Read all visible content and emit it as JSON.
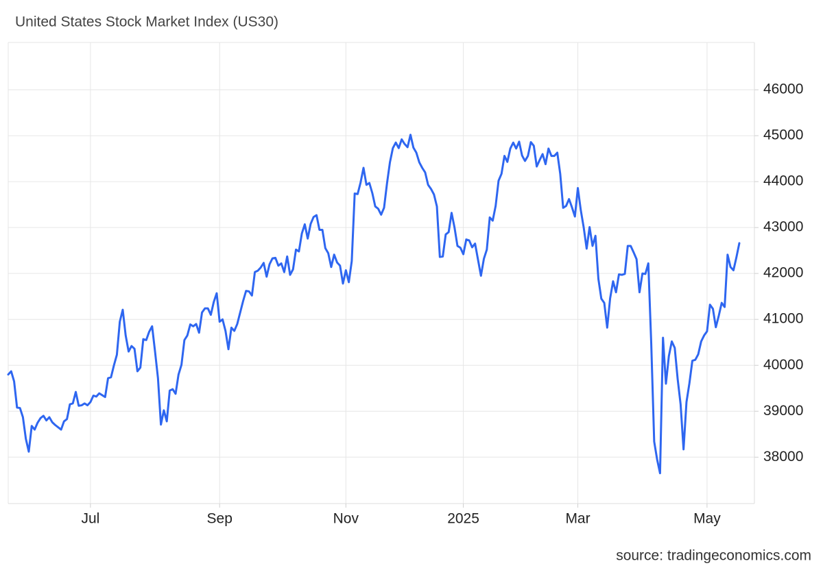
{
  "chart_data": {
    "type": "line",
    "title": "United States Stock Market Index (US30)",
    "source": "source: tradingeconomics.com",
    "color": "#2e66f0",
    "grid": true,
    "categories": [
      null,
      null,
      null,
      null,
      null,
      null,
      null,
      null,
      null,
      null,
      null,
      null,
      null,
      null,
      null,
      null,
      null,
      null,
      null,
      null,
      null,
      null,
      null,
      null,
      null,
      null,
      null,
      null,
      "Jul",
      null,
      null,
      null,
      null,
      null,
      null,
      null,
      null,
      null,
      null,
      null,
      null,
      null,
      null,
      null,
      null,
      null,
      null,
      null,
      null,
      null,
      null,
      null,
      null,
      null,
      null,
      null,
      null,
      null,
      null,
      null,
      null,
      null,
      null,
      null,
      null,
      null,
      null,
      null,
      null,
      null,
      null,
      null,
      "Sep",
      null,
      null,
      null,
      null,
      null,
      null,
      null,
      null,
      null,
      null,
      null,
      null,
      null,
      null,
      null,
      null,
      null,
      null,
      null,
      null,
      null,
      null,
      null,
      null,
      null,
      null,
      null,
      null,
      null,
      null,
      null,
      null,
      null,
      null,
      null,
      null,
      null,
      null,
      null,
      null,
      null,
      null,
      "Nov",
      null,
      null,
      null,
      null,
      null,
      null,
      null,
      null,
      null,
      null,
      null,
      null,
      null,
      null,
      null,
      null,
      null,
      null,
      null,
      null,
      null,
      null,
      null,
      null,
      null,
      null,
      null,
      null,
      null,
      null,
      null,
      null,
      null,
      null,
      null,
      null,
      null,
      null,
      null,
      "2025",
      null,
      null,
      null,
      null,
      null,
      null,
      null,
      null,
      null,
      null,
      null,
      null,
      null,
      null,
      null,
      null,
      null,
      null,
      null,
      null,
      null,
      null,
      null,
      null,
      null,
      null,
      null,
      null,
      null,
      null,
      null,
      null,
      null,
      null,
      null,
      null,
      null,
      null,
      "Mar",
      null,
      null,
      null,
      null,
      null,
      null,
      null,
      null,
      null,
      null,
      null,
      null,
      null,
      null,
      null,
      null,
      null,
      null,
      null,
      null,
      null,
      null,
      null,
      null,
      null,
      null,
      null,
      null,
      null,
      null,
      null,
      null,
      null,
      null,
      null,
      null,
      null,
      null,
      null,
      null,
      null,
      null,
      null,
      "May",
      null,
      null,
      null,
      null,
      null,
      null,
      null,
      null,
      null,
      null,
      null
    ],
    "values": [
      39800,
      39870,
      39650,
      39080,
      39070,
      38870,
      38400,
      38120,
      38680,
      38600,
      38750,
      38850,
      38900,
      38800,
      38870,
      38760,
      38700,
      38650,
      38600,
      38780,
      38830,
      39150,
      39170,
      39420,
      39120,
      39130,
      39170,
      39130,
      39200,
      39340,
      39320,
      39390,
      39350,
      39310,
      39720,
      39740,
      40000,
      40230,
      40950,
      41210,
      40650,
      40300,
      40420,
      40360,
      39870,
      39950,
      40570,
      40550,
      40730,
      40850,
      40300,
      39720,
      38710,
      39020,
      38780,
      39450,
      39480,
      39380,
      39800,
      40010,
      40550,
      40650,
      40890,
      40850,
      40900,
      40710,
      41150,
      41240,
      41240,
      41100,
      41380,
      41570,
      40950,
      41000,
      40750,
      40350,
      40820,
      40750,
      40900,
      41150,
      41400,
      41620,
      41610,
      41520,
      42030,
      42060,
      42130,
      42230,
      41930,
      42200,
      42330,
      42340,
      42170,
      42220,
      42030,
      42370,
      41970,
      42090,
      42520,
      42480,
      42870,
      43070,
      42760,
      43080,
      43230,
      43270,
      42950,
      42950,
      42550,
      42440,
      42140,
      42410,
      42240,
      42170,
      41780,
      42070,
      41810,
      42270,
      43740,
      43730,
      43980,
      44300,
      43930,
      43970,
      43750,
      43460,
      43410,
      43280,
      43430,
      43960,
      44420,
      44730,
      44850,
      44730,
      44920,
      44820,
      44750,
      45020,
      44740,
      44630,
      44420,
      44300,
      44200,
      43930,
      43840,
      43720,
      43460,
      42360,
      42370,
      42850,
      42900,
      43320,
      43000,
      42600,
      42560,
      42420,
      42740,
      42720,
      42570,
      42650,
      42300,
      41950,
      42320,
      42520,
      43220,
      43150,
      43470,
      44020,
      44170,
      44560,
      44430,
      44720,
      44850,
      44720,
      44870,
      44570,
      44450,
      44560,
      44860,
      44780,
      44330,
      44470,
      44600,
      44380,
      44720,
      44560,
      44560,
      44630,
      44170,
      43430,
      43470,
      43620,
      43440,
      43240,
      43860,
      43380,
      43000,
      42540,
      43010,
      42600,
      42820,
      41880,
      41450,
      41360,
      40820,
      41460,
      41830,
      41590,
      41980,
      41970,
      41990,
      42600,
      42600,
      42460,
      42310,
      41590,
      42000,
      41990,
      42220,
      40470,
      38340,
      37950,
      37650,
      40600,
      39600,
      40200,
      40520,
      40380,
      39700,
      39150,
      38170,
      39200,
      39610,
      40100,
      40120,
      40240,
      40520,
      40650,
      40740,
      41320,
      41230,
      40830,
      41080,
      41360,
      41270,
      42410,
      42140,
      42070,
      42350,
      42660
    ],
    "ylim": [
      36990,
      47030
    ],
    "yticks": [
      38000,
      39000,
      40000,
      41000,
      42000,
      43000,
      44000,
      45000,
      46000
    ]
  }
}
